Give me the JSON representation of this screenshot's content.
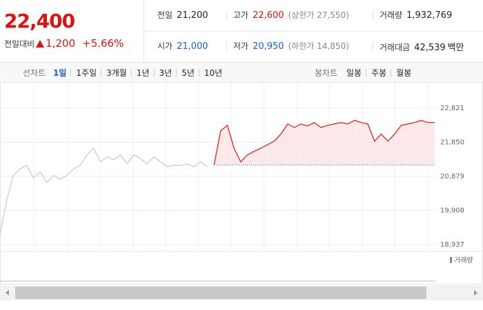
{
  "header": {
    "price": "22,400",
    "change_label": "전일대비",
    "change": "1,200",
    "change_pct": "+5.66%",
    "info": [
      {
        "label": "전일",
        "value": "21,200"
      },
      {
        "label": "고가",
        "value": "22,600",
        "sub": "(상한가 27,550)"
      },
      {
        "label": "거래량",
        "value": "1,932,769"
      },
      {
        "label": "시가",
        "value": "21,000"
      },
      {
        "label": "저가",
        "value": "20,950",
        "sub": "(하한가 14,850)"
      },
      {
        "label": "거래대금",
        "value": "42,539",
        "unit": "백만"
      }
    ]
  },
  "tabs": {
    "line_label": "선차트",
    "line": [
      "1일",
      "1주일",
      "3개월",
      "1년",
      "3년",
      "5년",
      "10년"
    ],
    "selected": "1일",
    "candle_label": "봉차트",
    "candle": [
      "일봉",
      "주봉",
      "월봉"
    ]
  },
  "chart_data": {
    "type": "line",
    "legend": "거래량",
    "ylim": [
      18740,
      23250
    ],
    "yticks": [
      {
        "value": 18937,
        "label": "18,937"
      },
      {
        "value": 19908,
        "label": "19,908"
      },
      {
        "value": 20879,
        "label": "20,879"
      },
      {
        "value": 21850,
        "label": "21,850"
      },
      {
        "value": 22821,
        "label": "22,821"
      }
    ],
    "baseline": 21200,
    "series": [
      {
        "color": "#c8c8c8",
        "values": [
          19230,
          20210,
          20900,
          21090,
          21190,
          20840,
          21000,
          20700,
          20900,
          20800,
          20900,
          21090,
          21190,
          21490,
          21680,
          21290,
          21430,
          21350,
          21490,
          21230,
          21490,
          21390,
          21230,
          21430,
          21290,
          21150,
          21190,
          21190,
          21230,
          21150,
          21290,
          21150,
          null,
          null,
          null,
          null,
          null,
          null,
          null,
          null,
          null,
          null,
          null,
          null,
          null,
          null,
          null,
          null,
          null,
          null,
          null,
          null,
          null,
          null,
          null,
          null,
          null,
          null,
          null,
          null,
          null,
          null,
          null,
          null,
          null,
          null
        ]
      },
      {
        "color": "#e81010",
        "fill": "#fde3e3",
        "values": [
          null,
          null,
          null,
          null,
          null,
          null,
          null,
          null,
          null,
          null,
          null,
          null,
          null,
          null,
          null,
          null,
          null,
          null,
          null,
          null,
          null,
          null,
          null,
          null,
          null,
          null,
          null,
          null,
          null,
          null,
          null,
          null,
          21200,
          22170,
          22330,
          21680,
          21290,
          21490,
          21590,
          21680,
          21780,
          21880,
          22080,
          22370,
          22270,
          22370,
          22310,
          22410,
          22270,
          22330,
          22370,
          22410,
          22370,
          22470,
          22410,
          22370,
          21880,
          22080,
          21880,
          22080,
          22330,
          22370,
          22410,
          22470,
          22410,
          22410
        ]
      }
    ]
  }
}
